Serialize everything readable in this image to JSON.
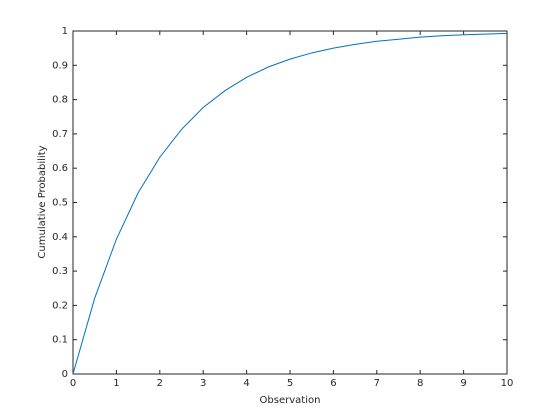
{
  "chart_data": {
    "type": "line",
    "x_label": "Observation",
    "y_label": "Cumulative Probability",
    "x": [
      0,
      0.5,
      1,
      1.5,
      2,
      2.5,
      3,
      3.5,
      4,
      4.5,
      5,
      5.5,
      6,
      6.5,
      7,
      7.5,
      8,
      8.5,
      9,
      9.5,
      10
    ],
    "values": [
      0,
      0.221,
      0.393,
      0.528,
      0.632,
      0.713,
      0.777,
      0.826,
      0.865,
      0.895,
      0.918,
      0.936,
      0.95,
      0.961,
      0.97,
      0.976,
      0.982,
      0.986,
      0.989,
      0.991,
      0.993
    ],
    "color": "#0072bd",
    "xlim": [
      0,
      10
    ],
    "xticks": [
      0,
      1,
      2,
      3,
      4,
      5,
      6,
      7,
      8,
      9,
      10
    ],
    "ylim": [
      0,
      1
    ],
    "yticks": [
      0,
      0.1,
      0.2,
      0.3,
      0.4,
      0.5,
      0.6,
      0.7,
      0.8,
      0.9,
      1
    ],
    "grid": false
  }
}
